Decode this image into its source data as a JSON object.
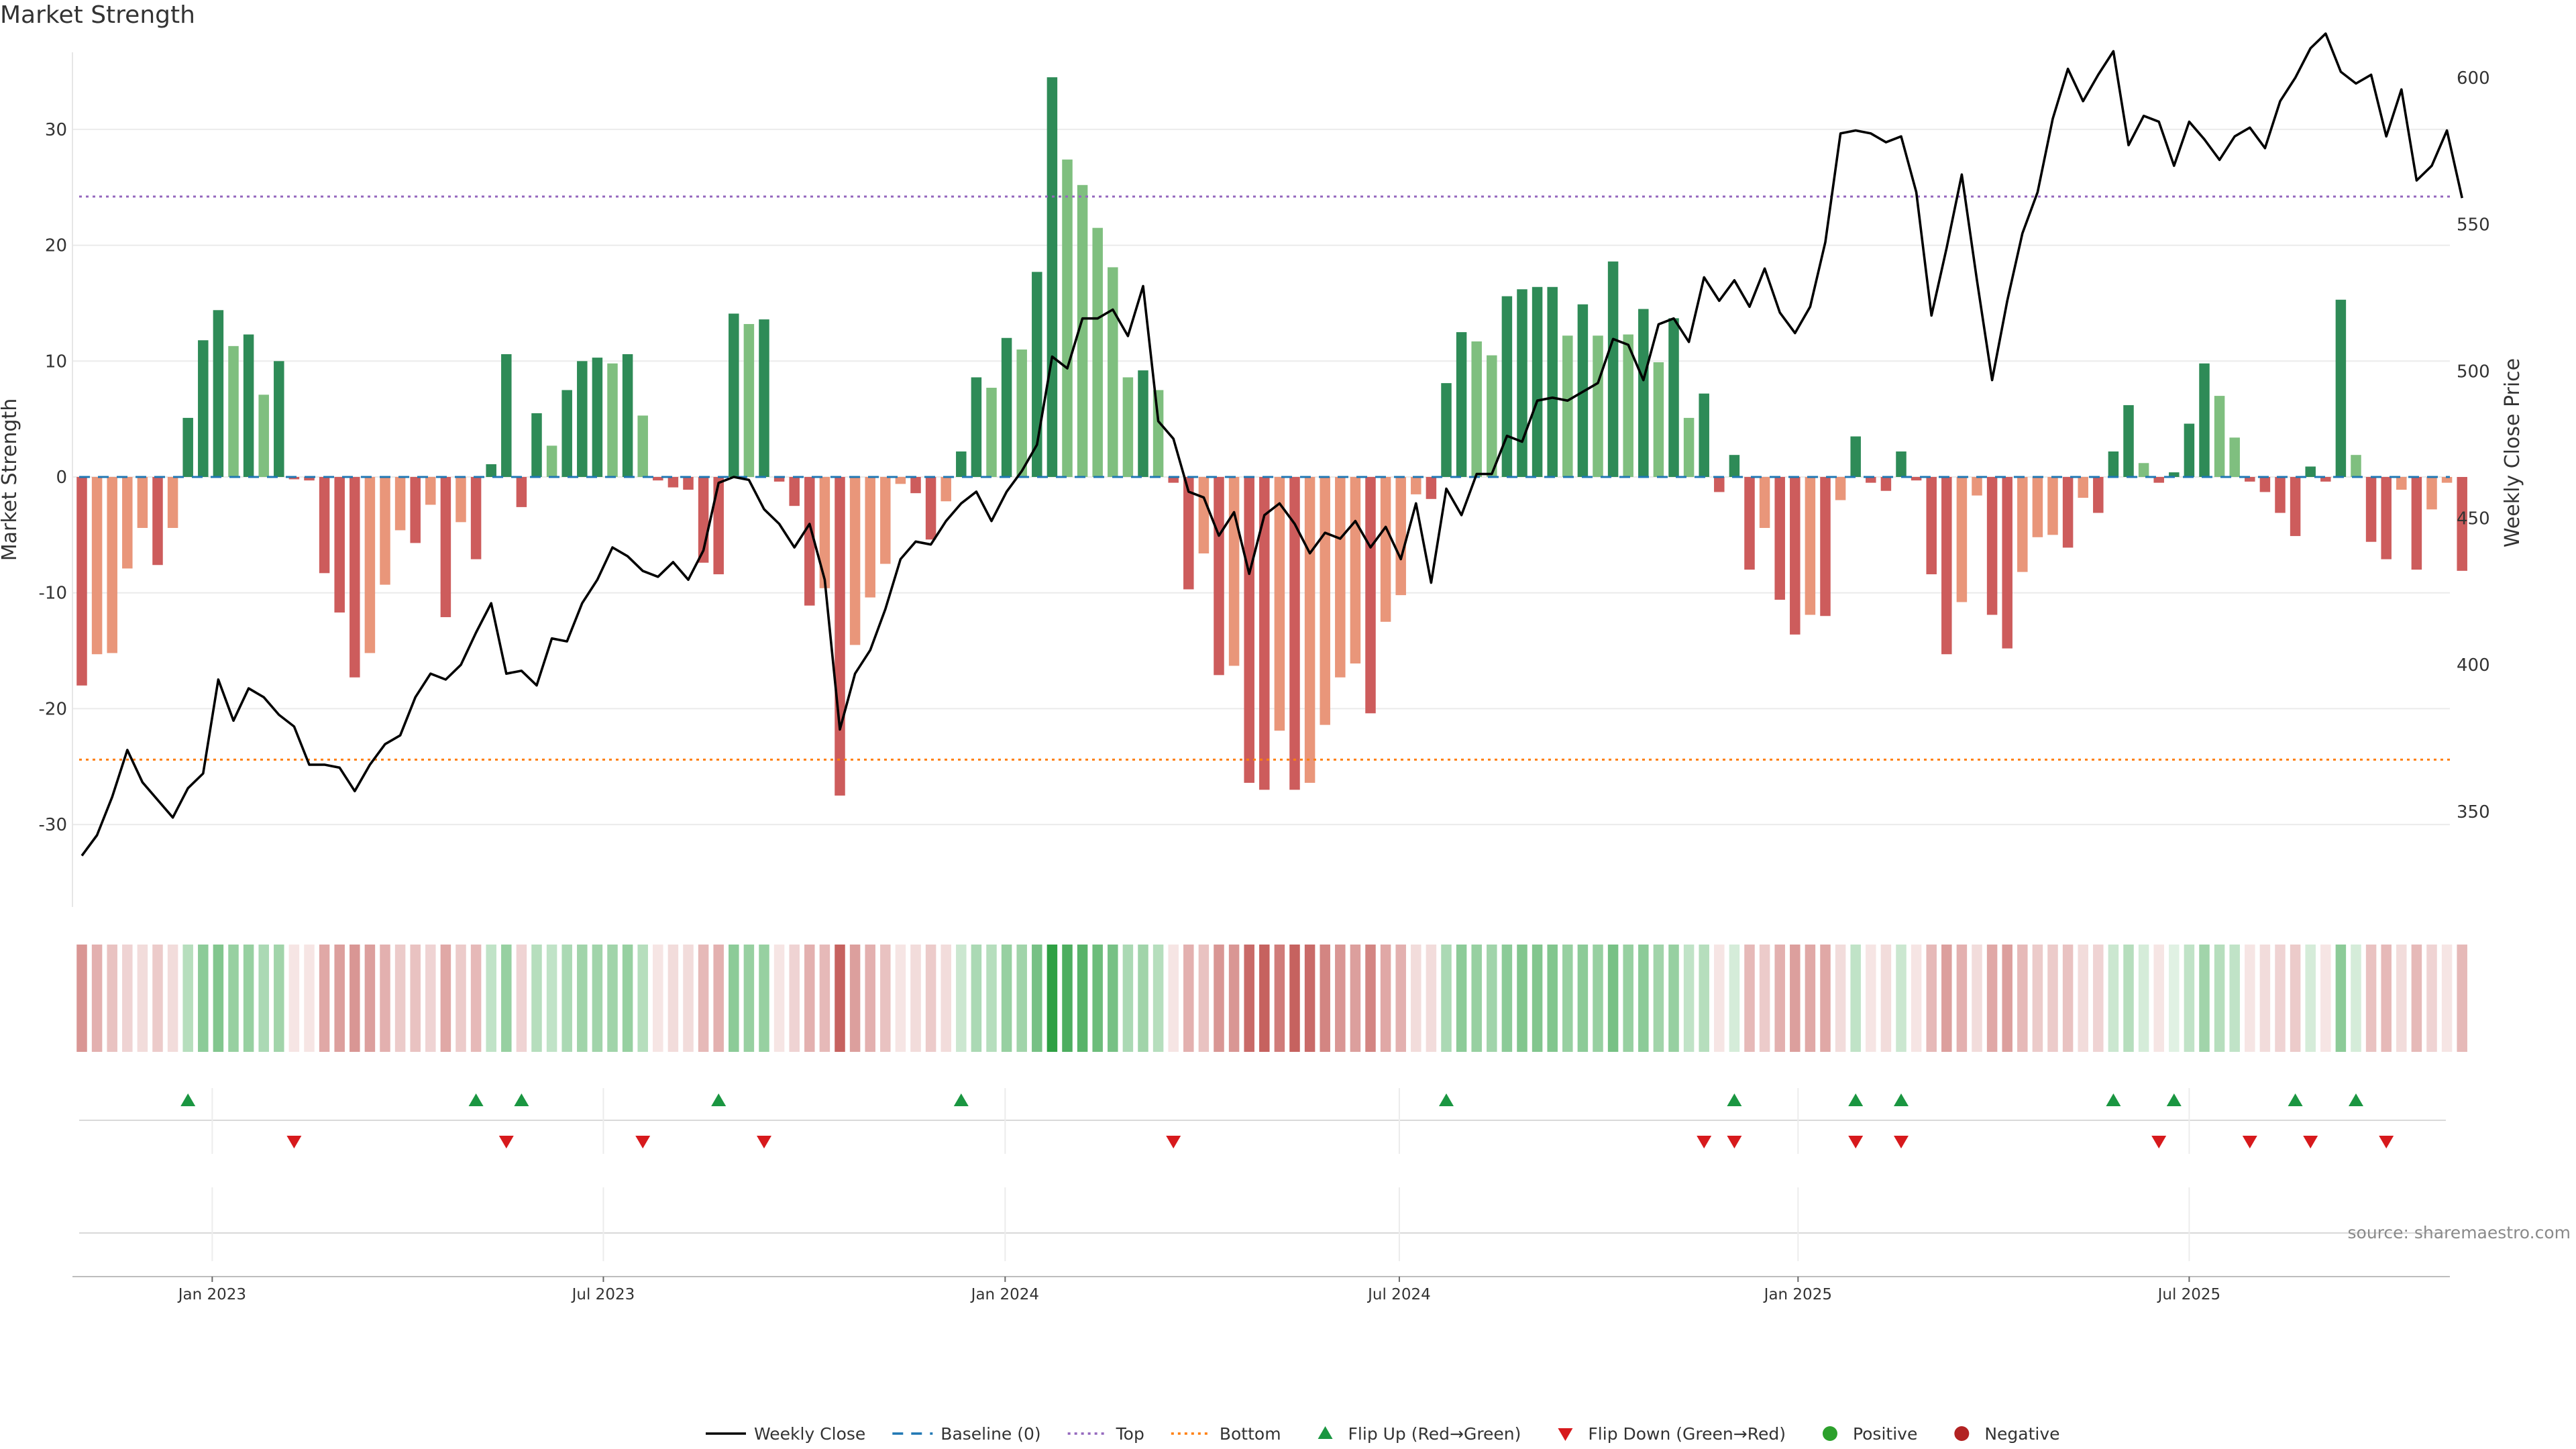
{
  "title": "Market Strength",
  "source_text": "source: sharemaestro.com",
  "colors": {
    "pos_strong": "#2e8b57",
    "pos_light": "#7fbf7f",
    "neg_strong": "#cd5c5c",
    "neg_light": "#e9967a",
    "close_line": "#000000",
    "baseline": "#1f77b4",
    "top_line": "#9467bd",
    "bottom_line": "#ff7f0e",
    "flip_up": "#1a9641",
    "flip_down": "#d7191c",
    "positive_dot": "#2ca02c",
    "negative_dot": "#b22222"
  },
  "chart_data": {
    "type": "bar+line",
    "start_week": "2022-11-04",
    "interval_days": 7,
    "left_axis": {
      "label": "Market Strength",
      "ylim": [
        -37,
        37
      ],
      "ticks": [
        30,
        20,
        10,
        0,
        -10,
        -20,
        -30
      ]
    },
    "right_axis": {
      "label": "Weekly Close Price",
      "ylim": [
        318,
        610
      ],
      "ticks": [
        600,
        550,
        500,
        450,
        400,
        350
      ]
    },
    "x_ticks": [
      {
        "label": "Jan 2023",
        "week": 8.6
      },
      {
        "label": "Jul 2023",
        "week": 34.4
      },
      {
        "label": "Jan 2024",
        "week": 60.9
      },
      {
        "label": "Jul 2024",
        "week": 86.9
      },
      {
        "label": "Jan 2025",
        "week": 113.2
      },
      {
        "label": "Jul 2025",
        "week": 139.0
      }
    ],
    "reference_lines": {
      "baseline": 0,
      "top": 24.2,
      "bottom": -24.4
    },
    "strength": [
      -18,
      -15.3,
      -15.2,
      -7.9,
      -4.4,
      -7.6,
      -4.4,
      5.1,
      11.8,
      14.4,
      11.3,
      12.3,
      7.1,
      10,
      -0.2,
      -0.3,
      -8.3,
      -11.7,
      -17.3,
      -15.2,
      -9.3,
      -4.6,
      -5.7,
      -2.4,
      -12.1,
      -3.9,
      -7.1,
      1.1,
      10.6,
      -2.6,
      5.5,
      2.7,
      7.5,
      10,
      10.3,
      9.8,
      10.6,
      5.3,
      -0.3,
      -0.9,
      -1.1,
      -7.4,
      -8.4,
      14.1,
      13.2,
      13.6,
      -0.4,
      -2.5,
      -11.1,
      -9.6,
      -27.5,
      -14.5,
      -10.4,
      -7.5,
      -0.6,
      -1.4,
      -5.4,
      -2.1,
      2.2,
      8.6,
      7.7,
      12,
      11,
      17.7,
      34.5,
      27.4,
      25.2,
      21.5,
      18.1,
      8.6,
      9.2,
      7.5,
      -0.5,
      -9.7,
      -6.6,
      -17.1,
      -16.3,
      -26.4,
      -27,
      -21.9,
      -27,
      -26.4,
      -21.4,
      -17.3,
      -16.1,
      -20.4,
      -12.5,
      -10.2,
      -1.5,
      -1.9,
      8.1,
      12.5,
      11.7,
      10.5,
      15.6,
      16.2,
      16.4,
      16.4,
      12.2,
      14.9,
      12.2,
      18.6,
      12.3,
      14.5,
      9.9,
      13.7,
      5.1,
      7.2,
      -1.3,
      1.9,
      -8,
      -4.4,
      -10.6,
      -13.6,
      -11.9,
      -12,
      -2,
      3.5,
      -0.5,
      -1.2,
      2.2,
      -0.3,
      -8.4,
      -15.3,
      -10.8,
      -1.6,
      -11.9,
      -14.8,
      -8.2,
      -5.2,
      -5,
      -6.1,
      -1.8,
      -3.1,
      2.2,
      6.2,
      1.2,
      -0.5,
      0.4,
      4.6,
      9.8,
      7.0,
      3.4,
      -0.4,
      -1.3,
      -3.1,
      -5.1,
      0.9,
      -0.4,
      15.3,
      1.9,
      -5.6,
      -7.1,
      -1.1,
      -8,
      -2.8,
      -0.5,
      -8.1
    ],
    "weekly_close": [
      335,
      342,
      355,
      371,
      360,
      354,
      348,
      358,
      363,
      395,
      381,
      392,
      389,
      383,
      379,
      366,
      366,
      365,
      357,
      366,
      373,
      376,
      389,
      397,
      395,
      400,
      411,
      421,
      397,
      398,
      393,
      409,
      408,
      421,
      429,
      440,
      437,
      432,
      430,
      435,
      429,
      439,
      462,
      464,
      463,
      453,
      448,
      440,
      448,
      429,
      378,
      397,
      405,
      419,
      436,
      442,
      441,
      449,
      455,
      459,
      449,
      459,
      466,
      475,
      505,
      501,
      518,
      518,
      521,
      512,
      529,
      483,
      477,
      459,
      457,
      444,
      452,
      431,
      451,
      455,
      448,
      438,
      445,
      443,
      449,
      440,
      447,
      436,
      455,
      428,
      460,
      451,
      465,
      465,
      478,
      476,
      490,
      491,
      490,
      493,
      496,
      511,
      509,
      497,
      516,
      518,
      510,
      532,
      524,
      531,
      522,
      535,
      520,
      513,
      522,
      544,
      581,
      582,
      581,
      578,
      580,
      561,
      519,
      542,
      567,
      531,
      497,
      524,
      547,
      561,
      586,
      603,
      592,
      601,
      609,
      577,
      587,
      585,
      570,
      585,
      579,
      572,
      580,
      583,
      576,
      592,
      600,
      610,
      615,
      602,
      598,
      601,
      580,
      596,
      565,
      570,
      582,
      559
    ],
    "strip_intensity": [
      0.6,
      0.45,
      0.35,
      0.25,
      0.2,
      0.3,
      0.2,
      0.35,
      0.55,
      0.6,
      0.5,
      0.5,
      0.4,
      0.45,
      0.15,
      0.15,
      0.5,
      0.55,
      0.6,
      0.55,
      0.45,
      0.3,
      0.35,
      0.25,
      0.5,
      0.3,
      0.4,
      0.3,
      0.5,
      0.25,
      0.35,
      0.3,
      0.4,
      0.45,
      0.45,
      0.45,
      0.5,
      0.35,
      0.15,
      0.2,
      0.2,
      0.4,
      0.45,
      0.55,
      0.5,
      0.5,
      0.15,
      0.25,
      0.45,
      0.4,
      0.9,
      0.55,
      0.45,
      0.35,
      0.15,
      0.2,
      0.3,
      0.2,
      0.25,
      0.4,
      0.35,
      0.5,
      0.45,
      0.65,
      1.0,
      0.85,
      0.8,
      0.7,
      0.65,
      0.4,
      0.45,
      0.35,
      0.15,
      0.45,
      0.35,
      0.6,
      0.6,
      0.85,
      0.9,
      0.75,
      0.9,
      0.85,
      0.7,
      0.6,
      0.55,
      0.7,
      0.5,
      0.45,
      0.2,
      0.2,
      0.4,
      0.55,
      0.5,
      0.45,
      0.55,
      0.6,
      0.6,
      0.6,
      0.5,
      0.55,
      0.5,
      0.65,
      0.5,
      0.55,
      0.45,
      0.5,
      0.3,
      0.35,
      0.15,
      0.2,
      0.4,
      0.3,
      0.45,
      0.55,
      0.5,
      0.5,
      0.2,
      0.3,
      0.15,
      0.2,
      0.25,
      0.15,
      0.4,
      0.55,
      0.45,
      0.2,
      0.5,
      0.55,
      0.4,
      0.3,
      0.3,
      0.35,
      0.2,
      0.25,
      0.25,
      0.35,
      0.2,
      0.15,
      0.15,
      0.3,
      0.45,
      0.35,
      0.3,
      0.15,
      0.2,
      0.25,
      0.3,
      0.2,
      0.15,
      0.55,
      0.2,
      0.35,
      0.4,
      0.2,
      0.4,
      0.25,
      0.15,
      0.4
    ],
    "flip_up_weeks": [
      7,
      26,
      29,
      42,
      58,
      90,
      109,
      117,
      120,
      134,
      138,
      146,
      150
    ],
    "flip_down_weeks": [
      14,
      28,
      37,
      45,
      72,
      107,
      109,
      117,
      120,
      137,
      143,
      147,
      152
    ]
  },
  "legend": [
    {
      "label": "Weekly Close",
      "kind": "solid-line",
      "color_key": "close_line"
    },
    {
      "label": "Baseline (0)",
      "kind": "dash-line",
      "color_key": "baseline"
    },
    {
      "label": "Top",
      "kind": "dot-line",
      "color_key": "top_line"
    },
    {
      "label": "Bottom",
      "kind": "dot-line",
      "color_key": "bottom_line"
    },
    {
      "label": "Flip Up (Red→Green)",
      "kind": "triangle-up",
      "color_key": "flip_up"
    },
    {
      "label": "Flip Down (Green→Red)",
      "kind": "triangle-down",
      "color_key": "flip_down"
    },
    {
      "label": "Positive",
      "kind": "dot",
      "color_key": "positive_dot"
    },
    {
      "label": "Negative",
      "kind": "dot",
      "color_key": "negative_dot"
    }
  ]
}
